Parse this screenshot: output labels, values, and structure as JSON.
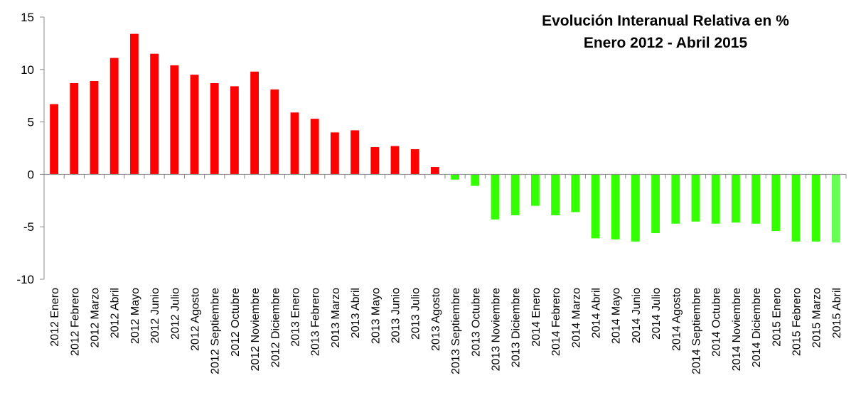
{
  "chart_data": {
    "type": "bar",
    "title": "Evolución Interanual Relativa en %",
    "subtitle": "Enero 2012 - Abril 2015",
    "xlabel": "",
    "ylabel": "",
    "ylim": [
      -10,
      15
    ],
    "yticks": [
      -10,
      -5,
      0,
      5,
      10,
      15
    ],
    "grid": false,
    "legend": "none",
    "colors": {
      "positive": "#ff0000",
      "negative": "#33ff00",
      "last": "#66ff55"
    },
    "categories": [
      "2012 Enero",
      "2012 Febrero",
      "2012 Marzo",
      "2012 Abril",
      "2012 Mayo",
      "2012 Junio",
      "2012 Julio",
      "2012 Agosto",
      "2012 Septiembre",
      "2012 Octubre",
      "2012 Noviembre",
      "2012 Diciembre",
      "2013 Enero",
      "2013 Febrero",
      "2013 Marzo",
      "2013 Abril",
      "2013 Mayo",
      "2013 Junio",
      "2013 Julio",
      "2013 Agosto",
      "2013 Septiembre",
      "2013 Octubre",
      "2013 Noviembre",
      "2013 Diciembre",
      "2014 Enero",
      "2014 Febrero",
      "2014 Marzo",
      "2014 Abril",
      "2014 Mayo",
      "2014 Junio",
      "2014 Julio",
      "2014 Agosto",
      "2014 Septiembre",
      "2014 Octubre",
      "2014 Noviembre",
      "2014 Diciembre",
      "2015 Enero",
      "2015 Febrero",
      "2015 Marzo",
      "2015 Abril"
    ],
    "values": [
      6.7,
      8.7,
      8.9,
      11.1,
      13.4,
      11.5,
      10.4,
      9.5,
      8.7,
      8.4,
      9.8,
      8.1,
      5.9,
      5.3,
      4.0,
      4.2,
      2.6,
      2.7,
      2.4,
      0.7,
      -0.5,
      -1.1,
      -4.3,
      -3.9,
      -3.0,
      -3.9,
      -3.6,
      -6.1,
      -6.2,
      -6.4,
      -5.6,
      -4.7,
      -4.5,
      -4.7,
      -4.6,
      -4.7,
      -5.4,
      -6.4,
      -6.4,
      -6.5
    ]
  }
}
